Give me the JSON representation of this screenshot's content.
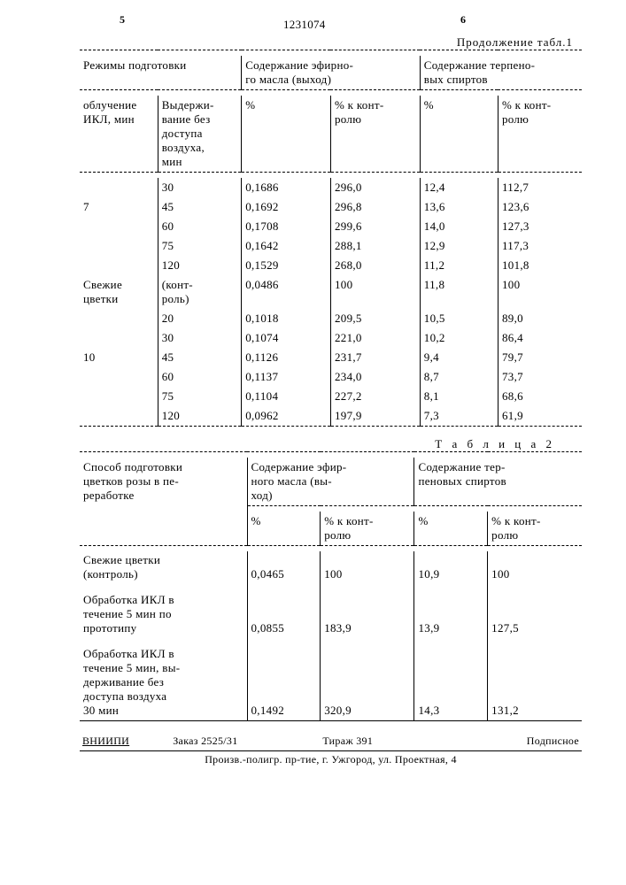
{
  "page": {
    "left_marker": "5",
    "right_marker": "6",
    "doc_number": "1231074",
    "continuation": "Продолжение табл.1"
  },
  "table1": {
    "group_headers": {
      "g1": "Режимы подготовки",
      "g2": "Содержание эфирно-\nго масла (выход)",
      "g3": "Содержание терпено-\nвых спиртов"
    },
    "sub_headers": {
      "c1": "облучение\nИКЛ, мин",
      "c2": "Выдержи-\nвание без\nдоступа\nвоздуха,\nмин",
      "c3": "%",
      "c4": "% к конт-\nролю",
      "c5": "%",
      "c6": "% к конт-\nролю"
    },
    "label_fresh": "Свежие\nцветки",
    "label_control": "(конт-\nроль)",
    "rows": [
      {
        "c1": "",
        "c2": "30",
        "c3": "0,1686",
        "c4": "296,0",
        "c5": "12,4",
        "c6": "112,7"
      },
      {
        "c1": "7",
        "c2": "45",
        "c3": "0,1692",
        "c4": "296,8",
        "c5": "13,6",
        "c6": "123,6"
      },
      {
        "c1": "",
        "c2": "60",
        "c3": "0,1708",
        "c4": "299,6",
        "c5": "14,0",
        "c6": "127,3"
      },
      {
        "c1": "",
        "c2": "75",
        "c3": "0,1642",
        "c4": "288,1",
        "c5": "12,9",
        "c6": "117,3"
      },
      {
        "c1": "",
        "c2": "120",
        "c3": "0,1529",
        "c4": "268,0",
        "c5": "11,2",
        "c6": "101,8"
      },
      {
        "c1": "Свежие\nцветки",
        "c2": "(конт-\nроль)",
        "c3": "0,0486",
        "c4": "100",
        "c5": "11,8",
        "c6": "100"
      },
      {
        "c1": "",
        "c2": "20",
        "c3": "0,1018",
        "c4": "209,5",
        "c5": "10,5",
        "c6": "89,0"
      },
      {
        "c1": "",
        "c2": "30",
        "c3": "0,1074",
        "c4": "221,0",
        "c5": "10,2",
        "c6": "86,4"
      },
      {
        "c1": "10",
        "c2": "45",
        "c3": "0,1126",
        "c4": "231,7",
        "c5": "9,4",
        "c6": "79,7"
      },
      {
        "c1": "",
        "c2": "60",
        "c3": "0,1137",
        "c4": "234,0",
        "c5": "8,7",
        "c6": "73,7"
      },
      {
        "c1": "",
        "c2": "75",
        "c3": "0,1104",
        "c4": "227,2",
        "c5": "8,1",
        "c6": "68,6"
      },
      {
        "c1": "",
        "c2": "120",
        "c3": "0,0962",
        "c4": "197,9",
        "c5": "7,3",
        "c6": "61,9"
      }
    ]
  },
  "table2": {
    "title": "Т а б л и ц а  2",
    "group_headers": {
      "g1": "Способ подготовки\nцветков розы в пе-\nреработке",
      "g2": "Содержание эфир-\nного масла (вы-\nход)",
      "g3": "Содержание тер-\nпеновых спиртов"
    },
    "sub_headers": {
      "c2": "%",
      "c3": "% к конт-\nролю",
      "c4": "%",
      "c5": "% к конт-\nролю"
    },
    "rows": [
      {
        "c1": "Свежие цветки\n(контроль)",
        "c2": "0,0465",
        "c3": "100",
        "c4": "10,9",
        "c5": "100"
      },
      {
        "c1": "Обработка ИКЛ в\nтечение 5 мин по\nпрототипу",
        "c2": "0,0855",
        "c3": "183,9",
        "c4": "13,9",
        "c5": "127,5"
      },
      {
        "c1": "Обработка ИКЛ в\nтечение 5 мин, вы-\nдерживание без\nдоступа воздуха\n30 мин",
        "c2": "0,1492",
        "c3": "320,9",
        "c4": "14,3",
        "c5": "131,2"
      }
    ]
  },
  "footer": {
    "org": "ВНИИПИ",
    "order": "Заказ 2525/31",
    "tirazh": "Тираж  391",
    "podpis": "Подписное",
    "line2": "Произв.-полигр. пр-тие, г. Ужгород, ул. Проектная, 4"
  },
  "style": {
    "col_widths_t1": [
      "14%",
      "15%",
      "16%",
      "16%",
      "14%",
      "15%"
    ],
    "col_widths_t2": [
      "32%",
      "14%",
      "18%",
      "14%",
      "18%"
    ]
  }
}
